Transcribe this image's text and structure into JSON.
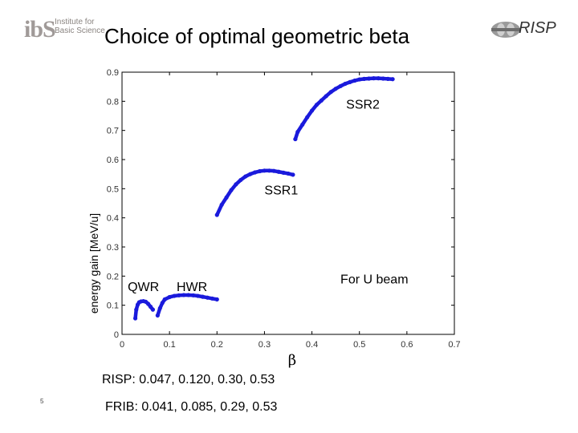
{
  "header": {
    "logo_mark": "ibS",
    "logo_line1": "Institute for",
    "logo_line2": "Basic Science",
    "title": "Choice of optimal geometric beta",
    "risp_logo": "RISP"
  },
  "chart_data": {
    "type": "scatter",
    "title": "",
    "xlabel": "β",
    "ylabel": "energy gain [MeV/u]",
    "xlim": [
      0,
      0.7
    ],
    "ylim": [
      0,
      0.9
    ],
    "xticks": [
      "0",
      "0.1",
      "0.2",
      "0.3",
      "0.4",
      "0.5",
      "0.6",
      "0.7"
    ],
    "yticks": [
      "0",
      "0.1",
      "0.2",
      "0.3",
      "0.4",
      "0.5",
      "0.6",
      "0.7",
      "0.8",
      "0.9"
    ],
    "series": [
      {
        "name": "QWR",
        "x": [
          0.028,
          0.03,
          0.033,
          0.036,
          0.04,
          0.045,
          0.05,
          0.055,
          0.06,
          0.065
        ],
        "y": [
          0.055,
          0.085,
          0.102,
          0.11,
          0.113,
          0.114,
          0.112,
          0.105,
          0.095,
          0.085
        ]
      },
      {
        "name": "HWR",
        "x": [
          0.075,
          0.08,
          0.085,
          0.09,
          0.1,
          0.11,
          0.12,
          0.13,
          0.14,
          0.15,
          0.16,
          0.17,
          0.18,
          0.19,
          0.2
        ],
        "y": [
          0.065,
          0.09,
          0.108,
          0.12,
          0.128,
          0.132,
          0.134,
          0.135,
          0.135,
          0.134,
          0.132,
          0.129,
          0.126,
          0.123,
          0.12
        ]
      },
      {
        "name": "SSR1",
        "x": [
          0.2,
          0.21,
          0.22,
          0.23,
          0.24,
          0.25,
          0.26,
          0.27,
          0.28,
          0.29,
          0.3,
          0.31,
          0.32,
          0.33,
          0.34,
          0.35,
          0.36
        ],
        "y": [
          0.41,
          0.445,
          0.47,
          0.495,
          0.515,
          0.53,
          0.542,
          0.55,
          0.556,
          0.56,
          0.562,
          0.562,
          0.561,
          0.558,
          0.555,
          0.552,
          0.548
        ]
      },
      {
        "name": "SSR2",
        "x": [
          0.365,
          0.37,
          0.38,
          0.39,
          0.4,
          0.41,
          0.42,
          0.43,
          0.44,
          0.45,
          0.46,
          0.47,
          0.48,
          0.49,
          0.5,
          0.51,
          0.52,
          0.53,
          0.54,
          0.55,
          0.56,
          0.57
        ],
        "y": [
          0.67,
          0.695,
          0.72,
          0.745,
          0.768,
          0.788,
          0.803,
          0.818,
          0.832,
          0.843,
          0.852,
          0.86,
          0.866,
          0.871,
          0.875,
          0.877,
          0.878,
          0.879,
          0.879,
          0.878,
          0.877,
          0.876
        ]
      }
    ],
    "annotations": [
      {
        "text": "QWR",
        "x": 0.012,
        "y": 0.148
      },
      {
        "text": "HWR",
        "x": 0.115,
        "y": 0.148
      },
      {
        "text": "SSR1",
        "x": 0.3,
        "y": 0.48
      },
      {
        "text": "SSR2",
        "x": 0.472,
        "y": 0.775
      },
      {
        "text": "For U beam",
        "x": 0.46,
        "y": 0.175
      }
    ],
    "grid": false,
    "marker_color": "#1a1adc"
  },
  "captions": {
    "risp": "RISP: 0.047, 0.120,  0.30, 0.53",
    "frib": "FRIB: 0.041, 0.085, 0.29, 0.53"
  },
  "footer": {
    "page_number": "5"
  }
}
